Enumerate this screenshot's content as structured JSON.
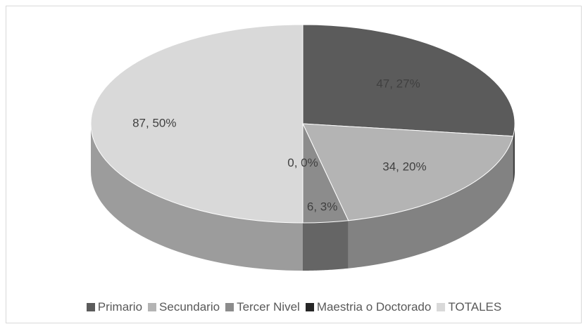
{
  "chart_data": {
    "type": "pie3d",
    "categories": [
      "Primario",
      "Secundario",
      "Tercer Nivel",
      "Maestria o Doctorado",
      "TOTALES"
    ],
    "values": [
      47,
      34,
      6,
      0,
      87
    ],
    "value_labels": [
      "47, 27%",
      "34, 20%",
      "6, 3%",
      "0, 0%",
      "87, 50%"
    ],
    "colors": [
      "#5b5b5b",
      "#b4b4b4",
      "#8c8c8c",
      "#262626",
      "#d9d9d9"
    ],
    "legend": "bottom"
  }
}
